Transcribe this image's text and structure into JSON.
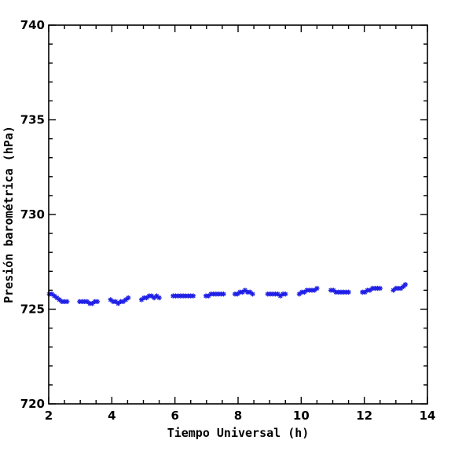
{
  "chart_data": {
    "type": "scatter",
    "title": "",
    "xlabel": "Tiempo Universal (h)",
    "ylabel": "Presión barométrica (hPa)",
    "xlim": [
      2,
      14
    ],
    "ylim": [
      720,
      740
    ],
    "x_ticks": [
      "2",
      "4",
      "6",
      "8",
      "10",
      "12",
      "14"
    ],
    "y_ticks": [
      "720",
      "725",
      "730",
      "735",
      "740"
    ],
    "x_tick_values": [
      2,
      4,
      6,
      8,
      10,
      12,
      14
    ],
    "y_tick_values": [
      720,
      725,
      730,
      735,
      740
    ],
    "x_minor_step": 0.5,
    "y_minor_step": 1,
    "grid": false,
    "marker": "asterisk",
    "marker_color": "#1f1fe6",
    "series": [
      {
        "x": [
          2.02,
          2.1,
          2.18,
          2.26,
          2.34,
          2.42,
          2.5,
          2.58,
          2.98,
          3.06,
          3.14,
          3.22,
          3.3,
          3.38,
          3.46,
          3.54,
          3.96,
          4.04,
          4.12,
          4.2,
          4.28,
          4.36,
          4.44,
          4.52,
          4.94,
          5.02,
          5.1,
          5.18,
          5.26,
          5.34,
          5.42,
          5.5,
          5.94,
          6.02,
          6.1,
          6.18,
          6.26,
          6.34,
          6.42,
          6.5,
          6.58,
          6.98,
          7.06,
          7.14,
          7.22,
          7.3,
          7.38,
          7.46,
          7.54,
          7.9,
          7.98,
          8.06,
          8.14,
          8.22,
          8.3,
          8.38,
          8.46,
          8.94,
          9.02,
          9.1,
          9.18,
          9.26,
          9.34,
          9.42,
          9.5,
          9.94,
          10.02,
          10.1,
          10.18,
          10.26,
          10.34,
          10.42,
          10.5,
          10.94,
          11.02,
          11.1,
          11.18,
          11.26,
          11.34,
          11.42,
          11.5,
          11.94,
          12.02,
          12.1,
          12.18,
          12.26,
          12.34,
          12.42,
          12.5,
          12.92,
          13.0,
          13.08,
          13.16,
          13.24,
          13.3
        ],
        "y": [
          725.8,
          725.8,
          725.7,
          725.6,
          725.5,
          725.4,
          725.4,
          725.4,
          725.4,
          725.4,
          725.4,
          725.4,
          725.3,
          725.3,
          725.4,
          725.4,
          725.5,
          725.4,
          725.4,
          725.3,
          725.4,
          725.4,
          725.5,
          725.6,
          725.5,
          725.6,
          725.6,
          725.7,
          725.7,
          725.6,
          725.7,
          725.6,
          725.7,
          725.7,
          725.7,
          725.7,
          725.7,
          725.7,
          725.7,
          725.7,
          725.7,
          725.7,
          725.7,
          725.8,
          725.8,
          725.8,
          725.8,
          725.8,
          725.8,
          725.8,
          725.8,
          725.9,
          725.9,
          726.0,
          725.9,
          725.9,
          725.8,
          725.8,
          725.8,
          725.8,
          725.8,
          725.8,
          725.7,
          725.8,
          725.8,
          725.8,
          725.9,
          725.9,
          726.0,
          726.0,
          726.0,
          726.0,
          726.1,
          726.0,
          726.0,
          725.9,
          725.9,
          725.9,
          725.9,
          725.9,
          725.9,
          725.9,
          725.9,
          726.0,
          726.0,
          726.1,
          726.1,
          726.1,
          726.1,
          726.0,
          726.1,
          726.1,
          726.1,
          726.2,
          726.3
        ]
      }
    ]
  }
}
